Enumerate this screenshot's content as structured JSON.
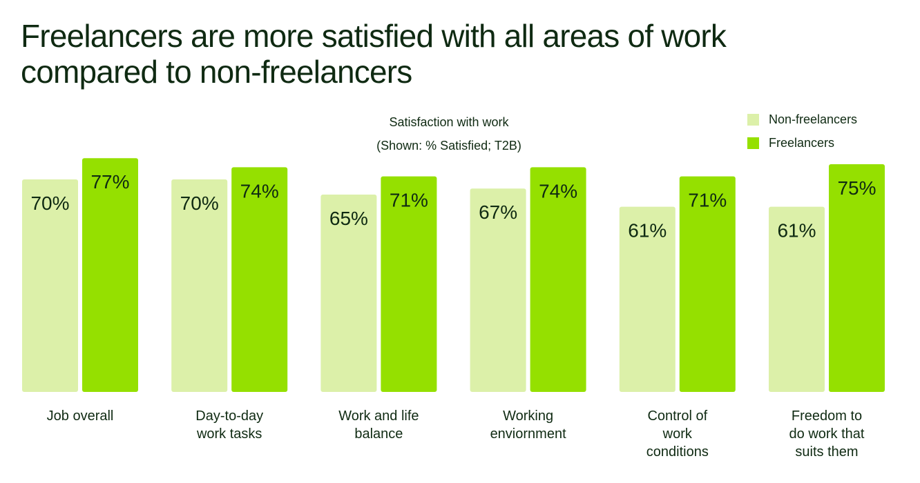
{
  "title_line1": "Freelancers are more satisfied with all areas of work",
  "title_line2": "compared to non-freelancers",
  "subtitle_line1": "Satisfaction with work",
  "subtitle_line2": "(Shown: % Satisfied; T2B)",
  "colors": {
    "non_freelancers": "#dcf0a9",
    "freelancers": "#95e000",
    "text": "#0f2a12"
  },
  "chart_data": {
    "type": "bar",
    "title": "Freelancers are more satisfied with all areas of work compared to non-freelancers",
    "subtitle": "Satisfaction with work (Shown: % Satisfied; T2B)",
    "categories": [
      [
        "Job overall"
      ],
      [
        "Day-to-day",
        "work tasks"
      ],
      [
        "Work and life",
        "balance"
      ],
      [
        "Working",
        "enviornment"
      ],
      [
        "Control of",
        "work",
        "conditions"
      ],
      [
        "Freedom to",
        "do work that",
        "suits them"
      ]
    ],
    "series": [
      {
        "name": "Non-freelancers",
        "values": [
          70,
          70,
          65,
          67,
          61,
          61
        ],
        "labels": [
          "70%",
          "70%",
          "65%",
          "67%",
          "61%",
          "61%"
        ]
      },
      {
        "name": "Freelancers",
        "values": [
          77,
          74,
          71,
          74,
          71,
          75
        ],
        "labels": [
          "77%",
          "74%",
          "71%",
          "74%",
          "71%",
          "75%"
        ]
      }
    ],
    "legend": "top-right",
    "grid": false,
    "ylim": [
      0,
      100
    ]
  }
}
